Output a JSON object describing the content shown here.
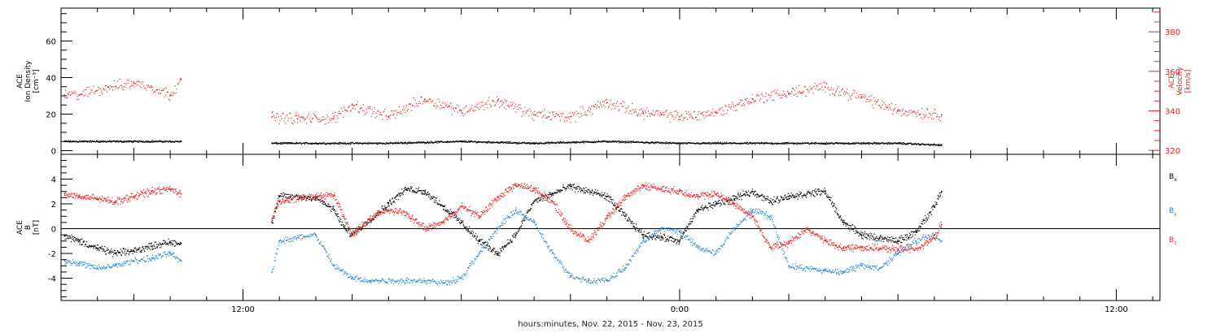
{
  "xaxis": {
    "label": "hours:minutes, Nov. 22, 2015 - Nov. 23, 2015",
    "range_hours": [
      -5,
      25.2
    ],
    "major_ticks": [
      {
        "t": 0,
        "label": "12:00"
      },
      {
        "t": 12,
        "label": "0:00"
      },
      {
        "t": 24,
        "label": "12:00"
      }
    ],
    "minor_tick_step_hours": 1
  },
  "panel1": {
    "left_label_lines": [
      "ACE",
      "Ion Density",
      "[cm⁻³]"
    ],
    "right_label_lines": [
      "ACE",
      "Velocity",
      "[km/s]"
    ],
    "left_ylim": [
      -2,
      78
    ],
    "left_ticks": [
      "0",
      "20",
      "40",
      "60"
    ],
    "right_ylim": [
      318,
      392
    ],
    "right_ticks": [
      "320",
      "340",
      "360",
      "380"
    ],
    "colors": {
      "density": "#000000",
      "velocity": "#e8221e"
    }
  },
  "panel2": {
    "left_label_lines": [
      "ACE",
      "B",
      "[nT]"
    ],
    "ylim": [
      -5.8,
      6
    ],
    "ticks": [
      "-4",
      "-2",
      "0",
      "2",
      "4"
    ],
    "legend": [
      {
        "name": "Bx",
        "base": "B",
        "sub": "x",
        "color": "#000000"
      },
      {
        "name": "By",
        "base": "B",
        "sub": "y",
        "color": "#1f7fd4"
      },
      {
        "name": "Bz",
        "base": "B",
        "sub": "z",
        "color": "#e8221e"
      }
    ]
  },
  "chart_data": {
    "type": "scatter",
    "x_units": "hours relative to 12:00 UT Nov. 22, 2015",
    "series": [
      {
        "name": "Ion Density",
        "panel": 1,
        "axis": "left",
        "color": "#000000",
        "segments": [
          {
            "x": [
              -4.9,
              -4.0,
              -3.0,
              -2.0,
              -1.7
            ],
            "y": [
              5,
              5,
              5,
              5,
              5
            ]
          },
          {
            "x": [
              0.8,
              2,
              4,
              6,
              8,
              10,
              12,
              14,
              16,
              18,
              19.2
            ],
            "y": [
              4,
              4,
              4,
              5,
              4,
              5,
              4,
              4,
              4,
              4,
              3
            ]
          }
        ]
      },
      {
        "name": "Velocity",
        "panel": 1,
        "axis": "right",
        "color": "#e8221e",
        "segments": [
          {
            "x": [
              -4.9,
              -4.5,
              -3.7,
              -3.0,
              -2.5,
              -2.0,
              -1.7
            ],
            "y": [
              348,
              348,
              352,
              354,
              352,
              348,
              356
            ]
          },
          {
            "x": [
              0.8,
              1.5,
              2.5,
              3.0,
              4.0,
              5.0,
              6.0,
              7.0,
              8.0,
              9.0,
              10.0,
              11.0,
              11.5,
              12.0,
              13.0,
              14.0,
              15.0,
              16.0,
              17.0,
              18.0,
              19.2
            ],
            "y": [
              337,
              336,
              336,
              343,
              337,
              346,
              340,
              345,
              338,
              337,
              344,
              339,
              338,
              337,
              339,
              346,
              349,
              352,
              347,
              340,
              338
            ]
          }
        ]
      },
      {
        "name": "Bx",
        "panel": 2,
        "color": "#000000",
        "segments": [
          {
            "x": [
              -4.9,
              -4.5,
              -4.0,
              -3.5,
              -3.0,
              -2.5,
              -2.0,
              -1.7
            ],
            "y": [
              -0.6,
              -1.0,
              -1.6,
              -2.0,
              -1.8,
              -1.4,
              -1.1,
              -1.2
            ]
          },
          {
            "x": [
              0.8,
              1.0,
              2.0,
              2.5,
              2.8,
              3.0,
              4.0,
              4.5,
              5.0,
              5.5,
              6.0,
              6.5,
              7.0,
              7.5,
              8.0,
              8.5,
              9.0,
              10.0,
              10.5,
              11.0,
              11.5,
              12.0,
              12.5,
              13.0,
              13.5,
              14.0,
              14.5,
              15.0,
              15.5,
              16.0,
              16.5,
              17.0,
              17.5,
              18.0,
              18.5,
              19.0,
              19.2
            ],
            "y": [
              0.5,
              2.6,
              2.5,
              1.5,
              0.0,
              -0.5,
              2.0,
              3.2,
              3.0,
              1.8,
              0.5,
              -1.0,
              -2.0,
              -0.5,
              2.2,
              2.8,
              3.4,
              2.6,
              1.0,
              -0.5,
              -0.7,
              -1.0,
              1.5,
              2.0,
              2.4,
              3.0,
              2.2,
              2.6,
              2.8,
              3.0,
              0.5,
              -0.5,
              -0.8,
              -1.0,
              -0.3,
              1.8,
              3.0
            ]
          }
        ]
      },
      {
        "name": "By",
        "panel": 2,
        "color": "#1f7fd4",
        "segments": [
          {
            "x": [
              -4.9,
              -4.5,
              -4.0,
              -3.5,
              -3.0,
              -2.5,
              -2.0,
              -1.7
            ],
            "y": [
              -2.6,
              -2.8,
              -3.2,
              -3.0,
              -2.6,
              -2.4,
              -2.0,
              -2.6
            ]
          },
          {
            "x": [
              0.8,
              1.0,
              2.0,
              2.5,
              3.0,
              3.5,
              4.5,
              5.0,
              5.5,
              6.0,
              6.5,
              7.0,
              7.5,
              8.0,
              8.5,
              9.0,
              9.5,
              10.0,
              10.5,
              11.0,
              11.5,
              12.0,
              12.5,
              13.0,
              13.5,
              14.0,
              14.5,
              15.0,
              16.0,
              16.5,
              17.0,
              17.5,
              18.0,
              18.5,
              19.0,
              19.2
            ],
            "y": [
              -3.5,
              -1.0,
              -0.5,
              -3.0,
              -4.0,
              -4.2,
              -4.2,
              -4.2,
              -4.4,
              -4.0,
              -2.0,
              0.0,
              1.5,
              0.5,
              -2.0,
              -3.8,
              -4.2,
              -4.2,
              -3.2,
              -1.0,
              0.0,
              -0.2,
              -1.5,
              -2.0,
              0.0,
              1.5,
              1.0,
              -3.0,
              -3.4,
              -3.5,
              -3.0,
              -3.2,
              -2.0,
              -1.0,
              -0.5,
              -1.0
            ]
          }
        ]
      },
      {
        "name": "Bz",
        "panel": 2,
        "color": "#e8221e",
        "segments": [
          {
            "x": [
              -4.9,
              -4.5,
              -4.0,
              -3.5,
              -3.0,
              -2.5,
              -2.0,
              -1.7
            ],
            "y": [
              2.8,
              2.6,
              2.4,
              2.2,
              2.6,
              3.0,
              3.2,
              2.8
            ]
          },
          {
            "x": [
              0.8,
              1.0,
              2.0,
              2.5,
              3.0,
              3.5,
              4.0,
              4.5,
              5.0,
              5.5,
              6.0,
              6.5,
              7.0,
              7.5,
              8.0,
              8.5,
              9.0,
              9.5,
              10.0,
              10.5,
              11.0,
              11.5,
              12.0,
              12.5,
              13.0,
              13.5,
              14.0,
              14.5,
              15.0,
              15.5,
              16.0,
              16.5,
              17.0,
              17.5,
              18.0,
              18.5,
              19.0,
              19.2
            ],
            "y": [
              0.8,
              2.2,
              2.6,
              2.7,
              -0.5,
              0.8,
              1.5,
              1.2,
              0.0,
              0.5,
              1.8,
              1.0,
              2.5,
              3.5,
              3.2,
              2.2,
              0.0,
              -1.0,
              0.8,
              2.5,
              3.5,
              3.2,
              3.0,
              2.6,
              2.8,
              2.0,
              1.0,
              -1.5,
              -1.2,
              0.0,
              -1.0,
              -1.6,
              -1.5,
              -1.6,
              -1.7,
              -1.6,
              -0.8,
              0.3
            ]
          }
        ]
      }
    ]
  }
}
